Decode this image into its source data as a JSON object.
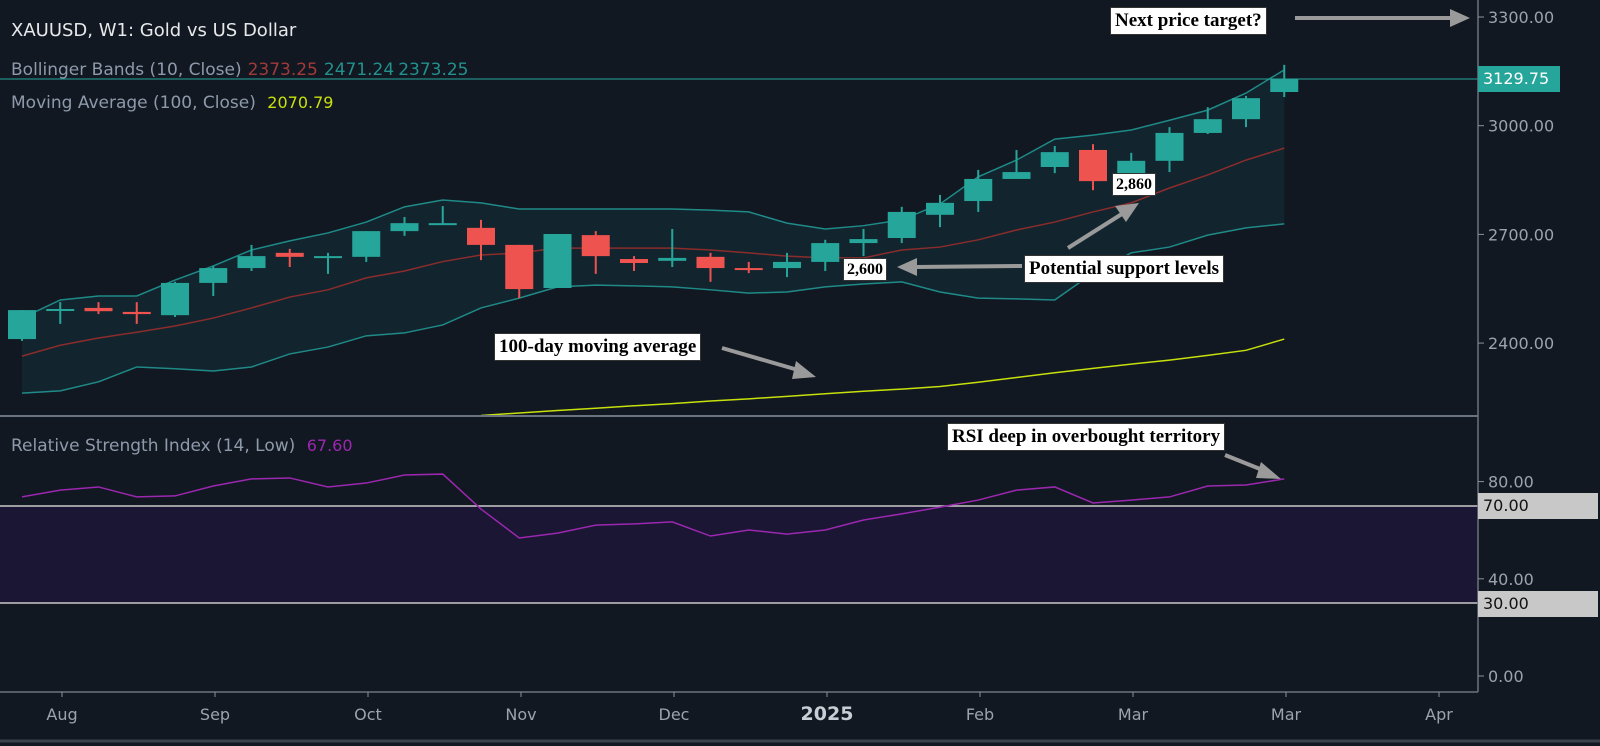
{
  "header": {
    "title": "XAUUSD, W1: Gold vs US Dollar",
    "bollinger": {
      "label": "Bollinger Bands (10, Close)",
      "v1": "2373.25",
      "v2": "2471.24",
      "v3": "2373.25"
    },
    "ma": {
      "label": "Moving Average (100, Close)",
      "value": "2070.79"
    },
    "rsi": {
      "label": "Relative Strength Index (14, Low)",
      "value": "67.60"
    }
  },
  "annotations": {
    "target": "Next price target?",
    "support": "Potential support levels",
    "s2860": "2,860",
    "s2600": "2,600",
    "ma100": "100-day moving average",
    "rsi": "RSI deep in overbought territory"
  },
  "price_badge": "3129.75",
  "rsi_badges": {
    "upper": "70.00",
    "lower": "30.00"
  },
  "colors": {
    "up": "#26a69a",
    "down": "#ef5350",
    "band": "#1f8a88",
    "basis": "#8b2c2c",
    "ma": "#c8e00c",
    "rsi": "#9c27b0",
    "zone": "#1a1633",
    "bg": "#111821"
  },
  "chart_data": {
    "type": "candlestick",
    "timeframe": "W1",
    "price_axis": {
      "ticks": [
        "3300.00",
        "3000.00",
        "2700.00",
        "2400.00"
      ],
      "range": [
        2199,
        3300
      ]
    },
    "rsi_axis": {
      "ticks": [
        "80.00",
        "40.00",
        "0.00"
      ],
      "range": [
        0,
        100
      ],
      "bands": [
        70,
        30
      ]
    },
    "time_labels": [
      "Aug",
      "Sep",
      "Oct",
      "Nov",
      "Dec",
      "2025",
      "Feb",
      "Mar",
      "Mar",
      "Apr"
    ],
    "ohlc": [
      [
        2411,
        2491,
        2406,
        2491
      ],
      [
        2494,
        2513,
        2453,
        2494
      ],
      [
        2497,
        2513,
        2480,
        2488
      ],
      [
        2486,
        2513,
        2453,
        2480
      ],
      [
        2477,
        2569,
        2472,
        2566
      ],
      [
        2566,
        2613,
        2530,
        2607
      ],
      [
        2607,
        2671,
        2599,
        2640
      ],
      [
        2649,
        2660,
        2610,
        2638
      ],
      [
        2638,
        2649,
        2591,
        2640
      ],
      [
        2638,
        2709,
        2624,
        2709
      ],
      [
        2709,
        2748,
        2696,
        2731
      ],
      [
        2728,
        2778,
        2726,
        2731
      ],
      [
        2718,
        2740,
        2629,
        2671
      ],
      [
        2671,
        2671,
        2524,
        2549
      ],
      [
        2552,
        2701,
        2552,
        2701
      ],
      [
        2698,
        2709,
        2591,
        2640
      ],
      [
        2632,
        2640,
        2599,
        2621
      ],
      [
        2627,
        2715,
        2610,
        2635
      ],
      [
        2638,
        2649,
        2569,
        2607
      ],
      [
        2607,
        2624,
        2593,
        2602
      ],
      [
        2607,
        2649,
        2582,
        2624
      ],
      [
        2624,
        2685,
        2599,
        2676
      ],
      [
        2676,
        2715,
        2640,
        2687
      ],
      [
        2690,
        2776,
        2676,
        2762
      ],
      [
        2754,
        2809,
        2720,
        2787
      ],
      [
        2792,
        2878,
        2762,
        2853
      ],
      [
        2853,
        2933,
        2853,
        2872
      ],
      [
        2886,
        2944,
        2869,
        2927
      ],
      [
        2933,
        2949,
        2822,
        2847
      ],
      [
        2864,
        2925,
        2850,
        2903
      ],
      [
        2903,
        2996,
        2872,
        2980
      ],
      [
        2980,
        3051,
        2977,
        3018
      ],
      [
        3018,
        3082,
        2996,
        3076
      ],
      [
        3093,
        3168,
        3079,
        3129.75
      ]
    ],
    "bb_upper": [
      2469,
      2519,
      2530,
      2530,
      2574,
      2613,
      2657,
      2682,
      2704,
      2734,
      2776,
      2795,
      2787,
      2770,
      2770,
      2770,
      2770,
      2770,
      2767,
      2762,
      2731,
      2715,
      2724,
      2740,
      2784,
      2859,
      2905,
      2963,
      2974,
      2988,
      3015,
      3043,
      3090,
      3154
    ],
    "bb_basis": [
      2364,
      2394,
      2414,
      2430,
      2447,
      2469,
      2497,
      2527,
      2547,
      2580,
      2599,
      2625,
      2643,
      2649,
      2662,
      2662,
      2662,
      2662,
      2657,
      2649,
      2640,
      2635,
      2635,
      2657,
      2665,
      2685,
      2712,
      2734,
      2762,
      2787,
      2828,
      2864,
      2905,
      2938
    ],
    "bb_lower": [
      2262,
      2268,
      2293,
      2334,
      2329,
      2323,
      2334,
      2370,
      2389,
      2420,
      2428,
      2450,
      2497,
      2524,
      2555,
      2560,
      2558,
      2555,
      2547,
      2538,
      2541,
      2555,
      2563,
      2569,
      2541,
      2524,
      2522,
      2519,
      2593,
      2649,
      2665,
      2698,
      2718,
      2729
    ],
    "ma100": [
      null,
      null,
      null,
      null,
      null,
      null,
      null,
      null,
      null,
      null,
      null,
      null,
      2200,
      2207,
      2214,
      2220,
      2227,
      2233,
      2240,
      2246,
      2253,
      2260,
      2267,
      2273,
      2280,
      2292,
      2305,
      2318,
      2330,
      2342,
      2353,
      2366,
      2380,
      2411
    ],
    "rsi": [
      73.7,
      76.5,
      77.8,
      73.7,
      74.1,
      78.2,
      81.1,
      81.5,
      77.8,
      79.4,
      82.7,
      83.1,
      68.7,
      56.8,
      58.8,
      62.1,
      62.6,
      63.4,
      57.6,
      60.1,
      58.4,
      60.1,
      64.2,
      66.7,
      69.5,
      72.4,
      76.5,
      77.8,
      71.2,
      72.4,
      73.7,
      78.2,
      78.6,
      81.1
    ]
  }
}
